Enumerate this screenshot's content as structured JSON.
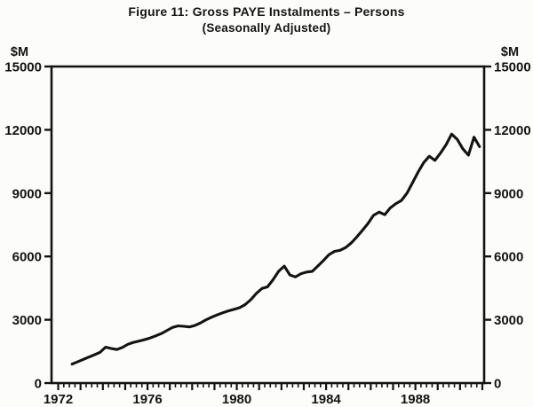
{
  "figure": {
    "kind": "scanned line chart",
    "background_color": "#fcfcfa",
    "ink_color": "#131313"
  },
  "chart_data": {
    "type": "line",
    "title": "Figure 11: Gross PAYE Instalments – Persons",
    "subtitle": "(Seasonally Adjusted)",
    "unit_label_left": "$M",
    "unit_label_right": "$M",
    "ylabel": "$M",
    "xlabel": "",
    "ylim": [
      0,
      15000
    ],
    "xlim": [
      1971.7,
      1991.08
    ],
    "y_ticks": [
      0,
      3000,
      6000,
      9000,
      12000,
      15000
    ],
    "x_tick_labels": [
      "1972",
      "1976",
      "1980",
      "1984",
      "1988"
    ],
    "x_year_tick_start": 1972,
    "x_year_tick_end": 1991,
    "x_minor_tick_interval_years": 0.25,
    "grid": false,
    "legend_position": "none",
    "frame": "box",
    "line_color": "#131313",
    "series": [
      {
        "name": "Gross PAYE instalments – persons (seasonally adjusted, $M)",
        "x_start": 1972.625,
        "x_step": 0.25,
        "periods": [
          "1972Q3",
          "1972Q4",
          "1973Q1",
          "1973Q2",
          "1973Q3",
          "1973Q4",
          "1974Q1",
          "1974Q2",
          "1974Q3",
          "1974Q4",
          "1975Q1",
          "1975Q2",
          "1975Q3",
          "1975Q4",
          "1976Q1",
          "1976Q2",
          "1976Q3",
          "1976Q4",
          "1977Q1",
          "1977Q2",
          "1977Q3",
          "1977Q4",
          "1978Q1",
          "1978Q2",
          "1978Q3",
          "1978Q4",
          "1979Q1",
          "1979Q2",
          "1979Q3",
          "1979Q4",
          "1980Q1",
          "1980Q2",
          "1980Q3",
          "1980Q4",
          "1981Q1",
          "1981Q2",
          "1981Q3",
          "1981Q4",
          "1982Q1",
          "1982Q2",
          "1982Q3",
          "1982Q4",
          "1983Q1",
          "1983Q2",
          "1983Q3",
          "1983Q4",
          "1984Q1",
          "1984Q2",
          "1984Q3",
          "1984Q4",
          "1985Q1",
          "1985Q2",
          "1985Q3",
          "1985Q4",
          "1986Q1",
          "1986Q2",
          "1986Q3",
          "1986Q4",
          "1987Q1",
          "1987Q2",
          "1987Q3",
          "1987Q4",
          "1988Q1",
          "1988Q2",
          "1988Q3",
          "1988Q4",
          "1989Q1",
          "1989Q2",
          "1989Q3",
          "1989Q4",
          "1990Q1",
          "1990Q2",
          "1990Q3",
          "1990Q4"
        ],
        "values": [
          900,
          1010,
          1120,
          1230,
          1340,
          1460,
          1700,
          1640,
          1590,
          1690,
          1840,
          1930,
          1990,
          2060,
          2140,
          2240,
          2350,
          2490,
          2640,
          2710,
          2690,
          2660,
          2730,
          2850,
          3000,
          3120,
          3230,
          3330,
          3420,
          3490,
          3570,
          3720,
          3950,
          4250,
          4480,
          4560,
          4900,
          5300,
          5540,
          5120,
          5030,
          5180,
          5260,
          5290,
          5540,
          5800,
          6080,
          6240,
          6290,
          6420,
          6640,
          6920,
          7230,
          7560,
          7950,
          8100,
          7980,
          8300,
          8500,
          8650,
          9000,
          9500,
          10000,
          10450,
          10750,
          10550,
          10900,
          11300,
          11800,
          11550,
          11100,
          10800,
          11650,
          11200
        ]
      }
    ]
  }
}
